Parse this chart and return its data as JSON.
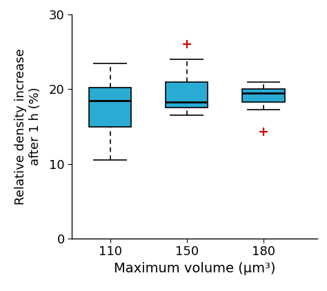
{
  "categories": [
    "110",
    "150",
    "180"
  ],
  "boxes": [
    {
      "q1": 15.0,
      "median": 18.5,
      "q3": 20.2,
      "whisker_low": 10.5,
      "whisker_high": 23.5,
      "outliers_high": [],
      "outliers_low": []
    },
    {
      "q1": 17.5,
      "median": 18.3,
      "q3": 21.0,
      "whisker_low": 16.5,
      "whisker_high": 24.0,
      "outliers_high": [
        26.0
      ],
      "outliers_low": []
    },
    {
      "q1": 18.3,
      "median": 19.5,
      "q3": 20.0,
      "whisker_low": 17.3,
      "whisker_high": 21.0,
      "outliers_high": [],
      "outliers_low": [
        14.3
      ]
    }
  ],
  "box_color": "#29ABD4",
  "median_color": "#000000",
  "whisker_color": "#000000",
  "outlier_color": "#cc0000",
  "box_width": 0.55,
  "cap_ratio": 0.4,
  "ylim": [
    0,
    30
  ],
  "yticks": [
    0,
    10,
    20,
    30
  ],
  "xlabel": "Maximum volume (μm³)",
  "ylabel": "Relative density increase\nafter 1 h (%)",
  "xlabel_fontsize": 14,
  "ylabel_fontsize": 13,
  "tick_fontsize": 13,
  "background_color": "#ffffff",
  "x_positions": [
    1,
    2,
    3
  ],
  "xlim": [
    0.5,
    3.7
  ]
}
